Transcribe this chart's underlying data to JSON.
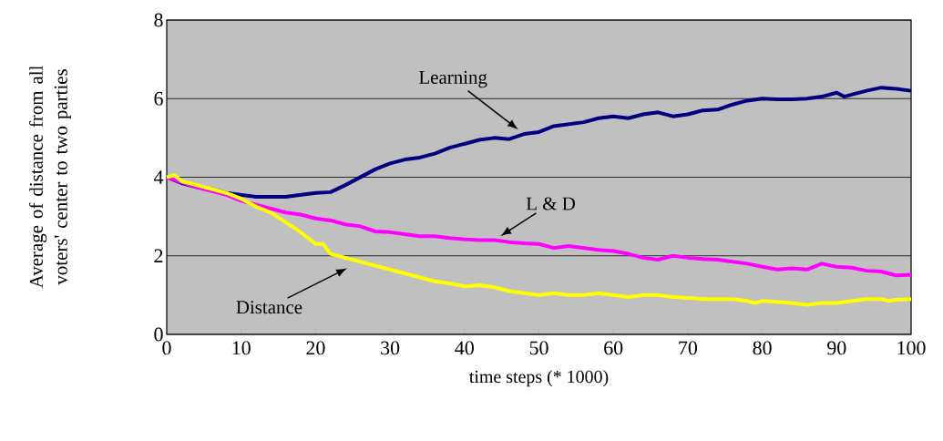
{
  "chart_data": {
    "type": "line",
    "xlabel": "time steps (* 1000)",
    "ylabel": "Average of distance from all voters' center to two parties",
    "xlim": [
      0,
      100
    ],
    "ylim": [
      0,
      8
    ],
    "xticks": [
      0,
      10,
      20,
      30,
      40,
      50,
      60,
      70,
      80,
      90,
      100
    ],
    "yticks": [
      0,
      2,
      4,
      6,
      8
    ],
    "grid": "y",
    "marker": "none",
    "line_style": "solid",
    "series": [
      {
        "name": "Learning",
        "color": "#000080",
        "x": [
          0,
          2,
          4,
          6,
          8,
          10,
          12,
          14,
          16,
          18,
          20,
          22,
          24,
          26,
          28,
          30,
          32,
          34,
          36,
          38,
          40,
          42,
          44,
          46,
          48,
          50,
          52,
          54,
          56,
          58,
          60,
          62,
          64,
          66,
          68,
          70,
          72,
          74,
          76,
          78,
          80,
          82,
          84,
          86,
          88,
          90,
          91,
          92,
          94,
          96,
          98,
          100
        ],
        "values": [
          4.0,
          3.85,
          3.75,
          3.7,
          3.6,
          3.55,
          3.5,
          3.5,
          3.5,
          3.55,
          3.6,
          3.62,
          3.8,
          4.0,
          4.2,
          4.35,
          4.45,
          4.5,
          4.6,
          4.75,
          4.85,
          4.95,
          5.0,
          4.97,
          5.1,
          5.15,
          5.3,
          5.35,
          5.4,
          5.5,
          5.55,
          5.5,
          5.6,
          5.65,
          5.55,
          5.6,
          5.7,
          5.72,
          5.85,
          5.95,
          6.0,
          5.98,
          5.98,
          6.0,
          6.05,
          6.15,
          6.05,
          6.1,
          6.2,
          6.28,
          6.25,
          6.2
        ]
      },
      {
        "name": "L & D",
        "color": "#ff00ff",
        "x": [
          0,
          4,
          8,
          10,
          12,
          14,
          16,
          18,
          20,
          22,
          24,
          26,
          28,
          30,
          32,
          34,
          36,
          38,
          40,
          42,
          44,
          46,
          48,
          50,
          52,
          54,
          56,
          58,
          60,
          62,
          64,
          66,
          68,
          70,
          72,
          74,
          76,
          78,
          80,
          82,
          84,
          86,
          88,
          90,
          92,
          94,
          96,
          98,
          100
        ],
        "values": [
          4.0,
          3.75,
          3.55,
          3.4,
          3.3,
          3.2,
          3.1,
          3.05,
          2.95,
          2.9,
          2.8,
          2.75,
          2.62,
          2.6,
          2.55,
          2.5,
          2.5,
          2.45,
          2.42,
          2.4,
          2.4,
          2.35,
          2.32,
          2.3,
          2.2,
          2.25,
          2.2,
          2.15,
          2.12,
          2.05,
          1.95,
          1.9,
          2.0,
          1.95,
          1.92,
          1.9,
          1.85,
          1.8,
          1.72,
          1.65,
          1.68,
          1.65,
          1.8,
          1.72,
          1.7,
          1.62,
          1.6,
          1.5,
          1.52
        ]
      },
      {
        "name": "Distance",
        "color": "#ffff00",
        "x": [
          0,
          1,
          2,
          4,
          6,
          8,
          10,
          12,
          14,
          16,
          18,
          20,
          21,
          22,
          24,
          26,
          28,
          30,
          32,
          34,
          36,
          38,
          40,
          42,
          44,
          46,
          48,
          50,
          52,
          54,
          56,
          58,
          60,
          62,
          64,
          66,
          68,
          70,
          72,
          74,
          76,
          78,
          79,
          80,
          84,
          86,
          88,
          90,
          92,
          94,
          96,
          97,
          98,
          100
        ],
        "values": [
          4.0,
          4.05,
          3.9,
          3.8,
          3.7,
          3.6,
          3.45,
          3.25,
          3.1,
          2.85,
          2.6,
          2.3,
          2.3,
          2.05,
          1.95,
          1.85,
          1.75,
          1.65,
          1.55,
          1.45,
          1.35,
          1.3,
          1.22,
          1.25,
          1.2,
          1.1,
          1.05,
          1.0,
          1.05,
          1.0,
          1.0,
          1.05,
          1.0,
          0.95,
          1.0,
          1.0,
          0.95,
          0.93,
          0.9,
          0.9,
          0.9,
          0.85,
          0.8,
          0.85,
          0.8,
          0.75,
          0.8,
          0.8,
          0.85,
          0.9,
          0.9,
          0.85,
          0.88,
          0.9
        ]
      }
    ]
  }
}
